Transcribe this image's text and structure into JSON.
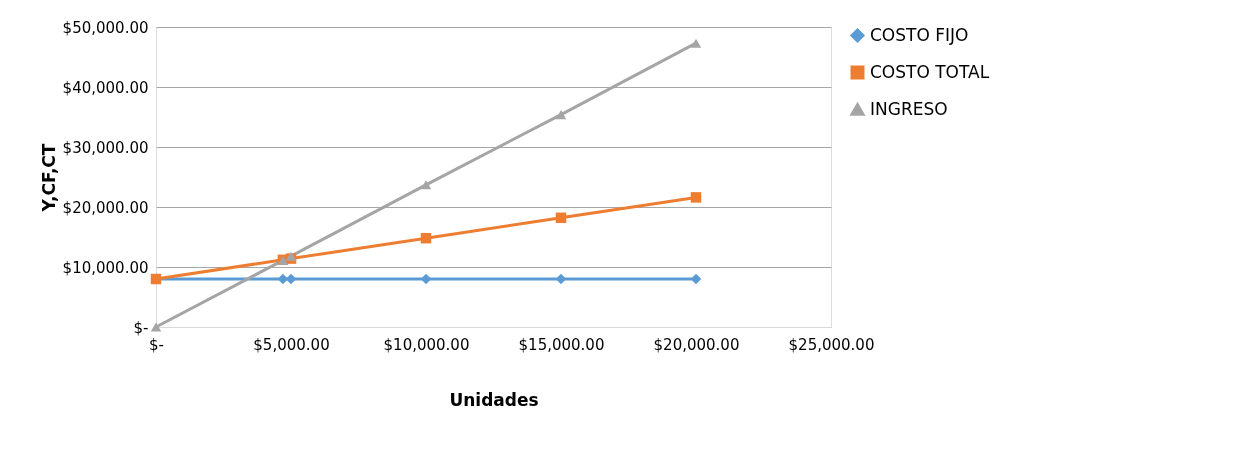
{
  "chart_data": {
    "type": "line",
    "xlabel": "Unidades",
    "ylabel": "Y,CF,CT",
    "x": [
      0,
      4700,
      5000,
      10000,
      15000,
      20000
    ],
    "series": [
      {
        "name": "COSTO FIJO",
        "color": "#5b9bd5",
        "marker": "diamond",
        "values": [
          8000,
          8000,
          8000,
          8000,
          8000,
          8000
        ]
      },
      {
        "name": "COSTO TOTAL",
        "color": "#ed7d31",
        "marker": "square",
        "values": [
          8000,
          11200,
          11400,
          14800,
          18200,
          21600
        ]
      },
      {
        "name": "INGRESO",
        "color": "#a5a5a5",
        "marker": "triangle",
        "values": [
          0,
          11100,
          11800,
          23700,
          35400,
          47300
        ]
      }
    ],
    "xlim": [
      0,
      25000
    ],
    "xticks": [
      {
        "value": 0,
        "label": "$-"
      },
      {
        "value": 5000,
        "label": "$5,000.00"
      },
      {
        "value": 10000,
        "label": "$10,000.00"
      },
      {
        "value": 15000,
        "label": "$15,000.00"
      },
      {
        "value": 20000,
        "label": "$20,000.00"
      },
      {
        "value": 25000,
        "label": "$25,000.00"
      }
    ],
    "ylim": [
      0,
      50000
    ],
    "yticks": [
      {
        "value": 0,
        "label": "$-"
      },
      {
        "value": 10000,
        "label": "$10,000.00"
      },
      {
        "value": 20000,
        "label": "$20,000.00"
      },
      {
        "value": 30000,
        "label": "$30,000.00"
      },
      {
        "value": 40000,
        "label": "$40,000.00"
      },
      {
        "value": 50000,
        "label": "$50,000.00"
      }
    ],
    "grid": "y",
    "legend": "right",
    "line_style": "solid"
  }
}
